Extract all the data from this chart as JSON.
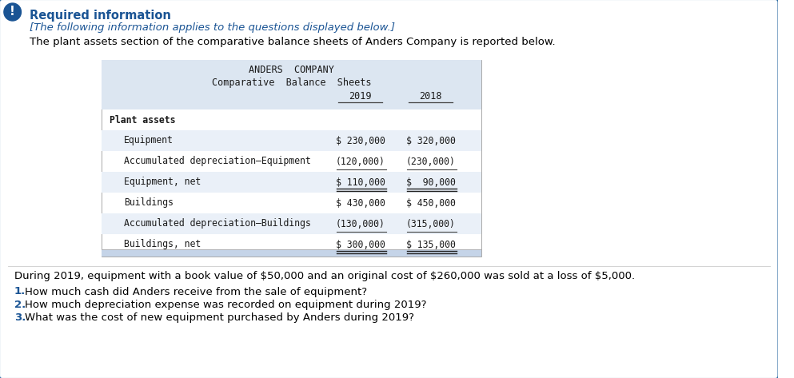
{
  "title": "Required information",
  "subtitle": "[The following information applies to the questions displayed below.]",
  "intro_text": "The plant assets section of the comparative balance sheets of Anders Company is reported below.",
  "table_title_line1": "ANDERS  COMPANY",
  "table_title_line2": "Comparative  Balance  Sheets",
  "col_headers": [
    "2019",
    "2018"
  ],
  "rows": [
    {
      "label": "Plant assets",
      "indent": 0,
      "val2019": "",
      "val2018": "",
      "bold": true,
      "underline": false,
      "double_underline": false,
      "eq_net": false
    },
    {
      "label": "Equipment",
      "indent": 1,
      "val2019": "$ 230,000",
      "val2018": "$ 320,000",
      "bold": false,
      "underline": false,
      "double_underline": false,
      "eq_net": false
    },
    {
      "label": "Accumulated depreciation–Equipment",
      "indent": 1,
      "val2019": "(120,000)",
      "val2018": "(230,000)",
      "bold": false,
      "underline": true,
      "double_underline": false,
      "eq_net": false
    },
    {
      "label": "Equipment, net",
      "indent": 1,
      "val2019": "$ 110,000",
      "val2018": "$  90,000",
      "bold": false,
      "underline": false,
      "double_underline": true,
      "eq_net": true
    },
    {
      "label": "Buildings",
      "indent": 1,
      "val2019": "$ 430,000",
      "val2018": "$ 450,000",
      "bold": false,
      "underline": false,
      "double_underline": false,
      "eq_net": false
    },
    {
      "label": "Accumulated depreciation–Buildings",
      "indent": 1,
      "val2019": "(130,000)",
      "val2018": "(315,000)",
      "bold": false,
      "underline": true,
      "double_underline": false,
      "eq_net": false
    },
    {
      "label": "Buildings, net",
      "indent": 1,
      "val2019": "$ 300,000",
      "val2018": "$ 135,000",
      "bold": false,
      "underline": false,
      "double_underline": true,
      "eq_net": false
    }
  ],
  "during_text": "During 2019, equipment with a book value of $50,000 and an original cost of $260,000 was sold at a loss of $5,000.",
  "questions": [
    "How much cash did Anders receive from the sale of equipment?",
    "How much depreciation expense was recorded on equipment during 2019?",
    "What was the cost of new equipment purchased by Anders during 2019?"
  ],
  "outer_border_color": "#2e6da4",
  "table_header_bg": "#dce6f1",
  "table_row_alt_bg": "#eaf0f8",
  "table_bg": "#ffffff",
  "title_color": "#1a5494",
  "subtitle_color": "#1a5494",
  "body_text_color": "#000000",
  "question_num_color": "#1a5494",
  "icon_bg": "#1a5494",
  "icon_text": "!"
}
